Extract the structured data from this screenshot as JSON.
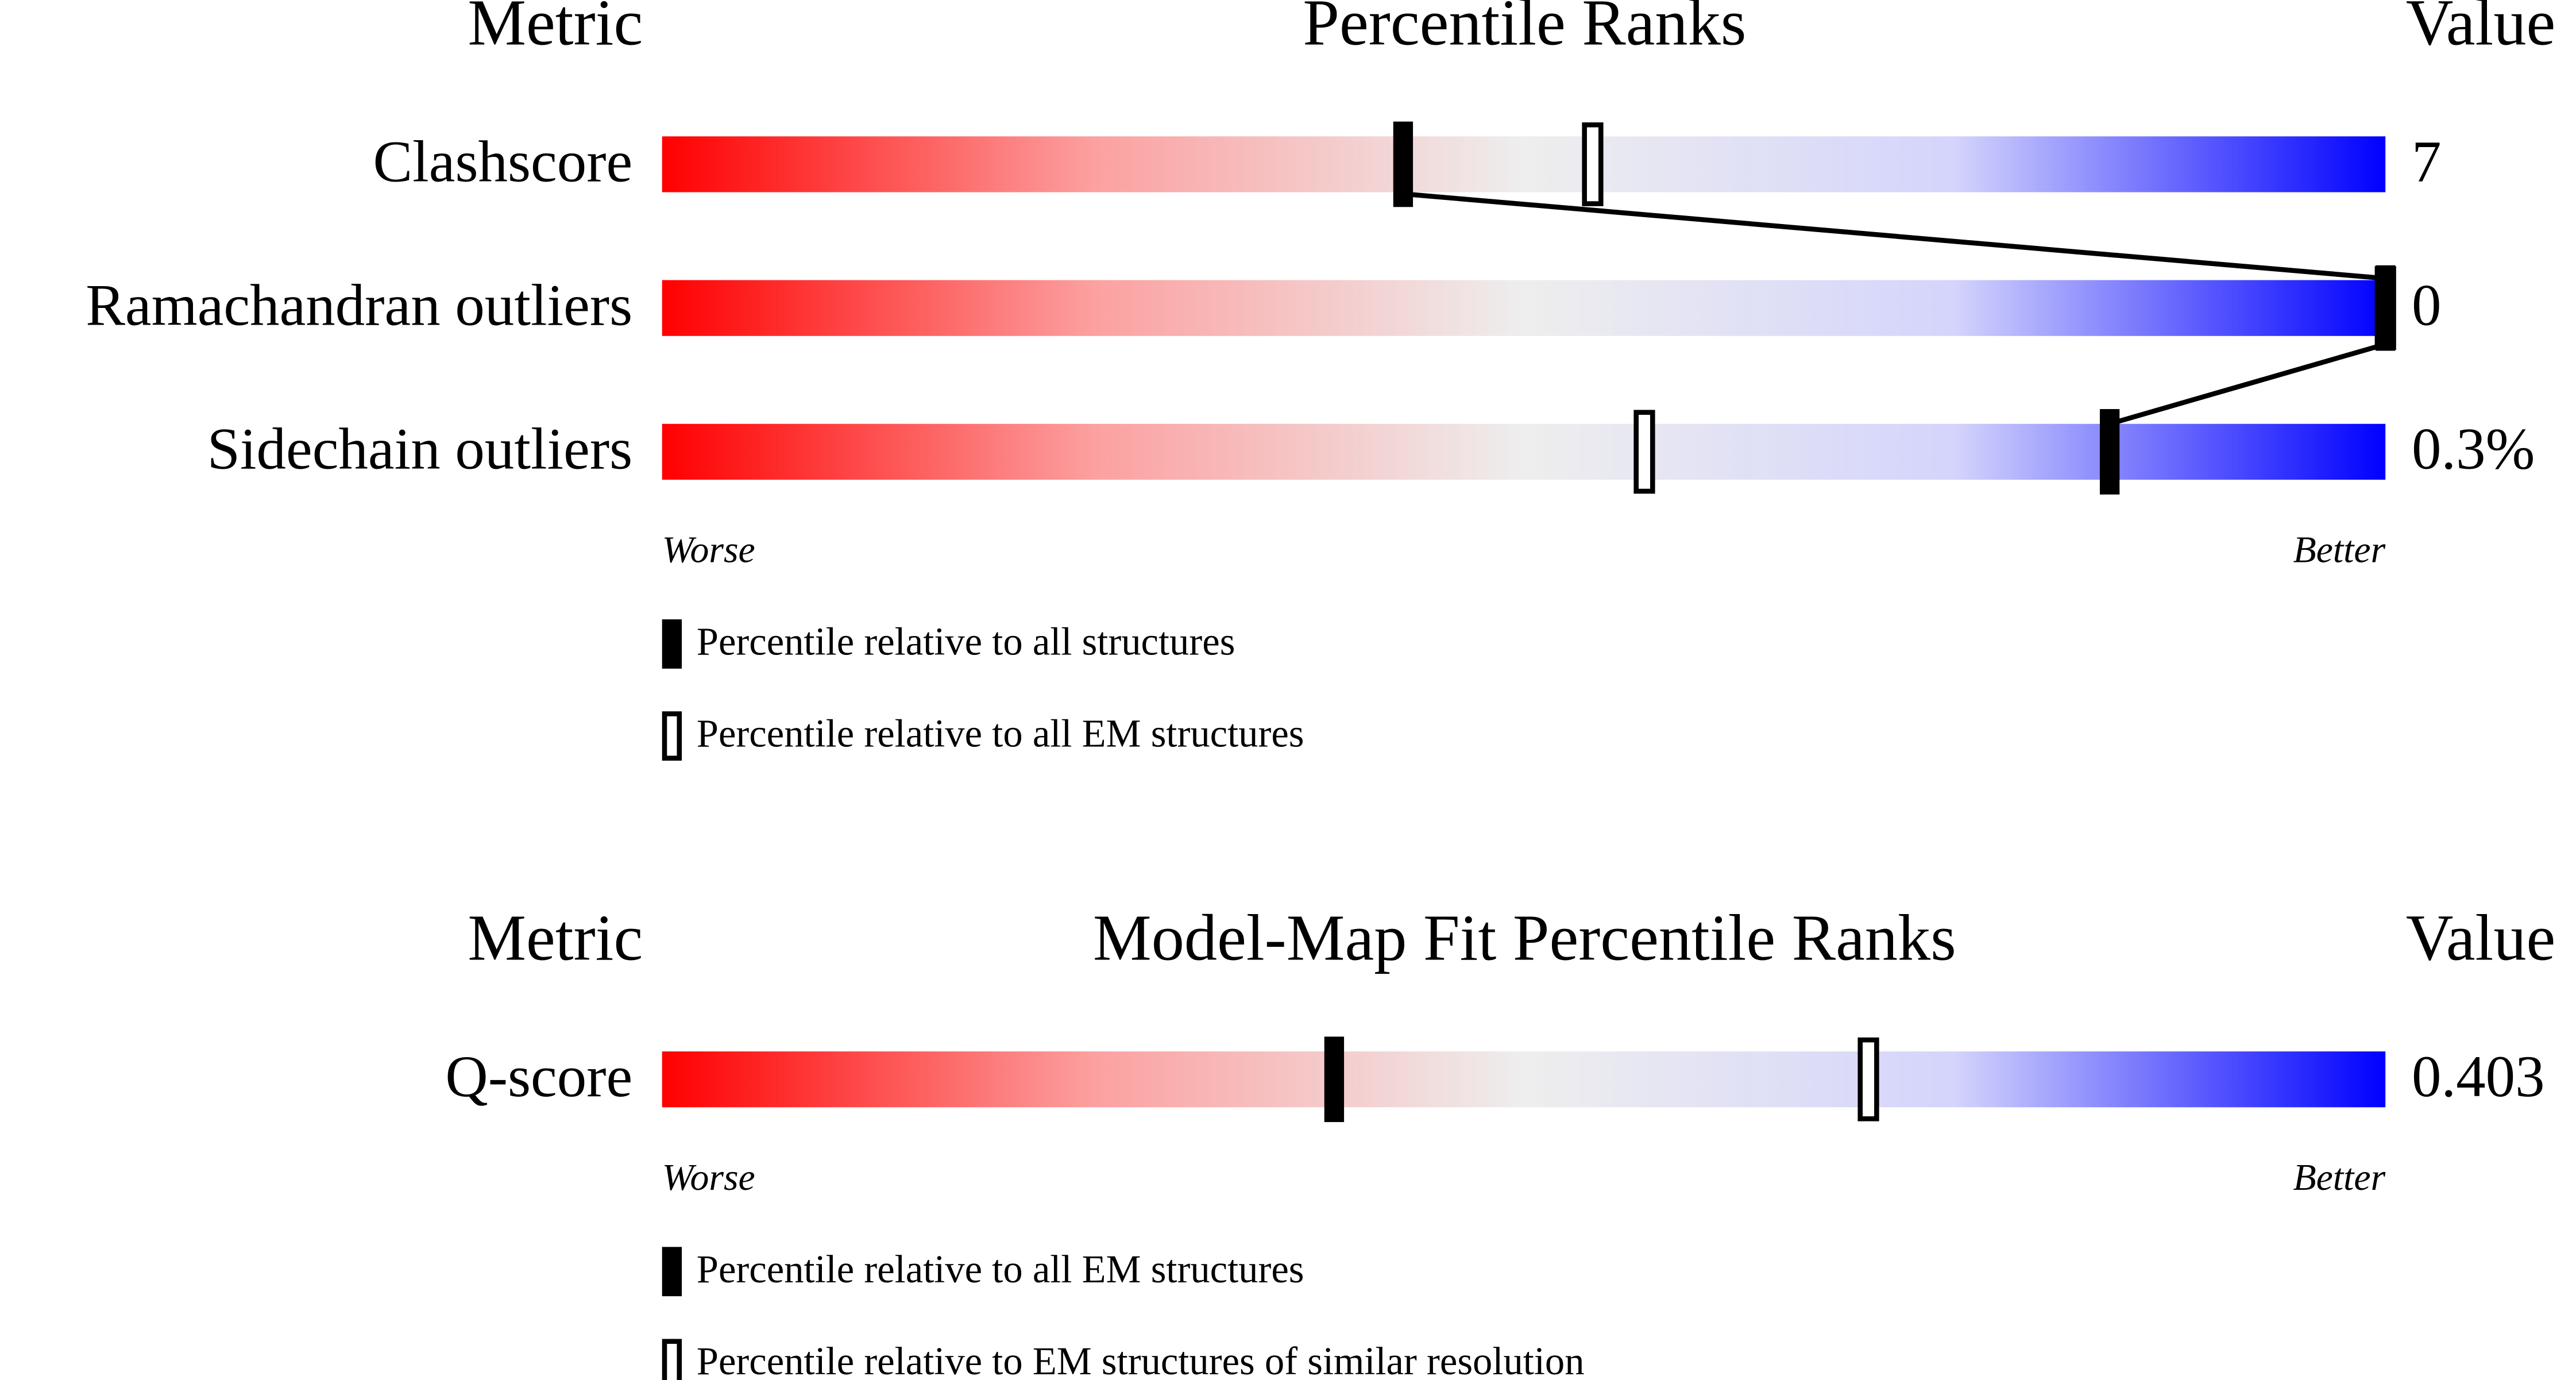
{
  "chart_data": [
    {
      "type": "percentile-slider",
      "headers": {
        "metric": "Metric",
        "title": "Percentile Ranks",
        "value": "Value"
      },
      "xlim": [
        0,
        100
      ],
      "metrics": [
        {
          "name": "Clashscore",
          "value": "7",
          "percentiles": [
            43,
            54
          ]
        },
        {
          "name": "Ramachandran outliers",
          "value": "0",
          "percentiles": [
            100,
            100
          ]
        },
        {
          "name": "Sidechain outliers",
          "value": "0.3%",
          "percentiles": [
            84,
            57
          ]
        }
      ],
      "connect": true,
      "axis_labels": [
        "Worse",
        "Better"
      ],
      "legend": [
        "Percentile relative to all structures",
        "Percentile relative to all EM structures"
      ]
    },
    {
      "type": "percentile-slider",
      "headers": {
        "metric": "Metric",
        "title": "Model-Map Fit Percentile Ranks",
        "value": "Value"
      },
      "xlim": [
        0,
        100
      ],
      "metrics": [
        {
          "name": "Q-score",
          "value": "0.403",
          "percentiles": [
            39,
            70
          ]
        }
      ],
      "connect": false,
      "axis_labels": [
        "Worse",
        "Better"
      ],
      "legend": [
        "Percentile relative to all EM structures",
        "Percentile relative to EM structures of similar resolution"
      ]
    }
  ]
}
